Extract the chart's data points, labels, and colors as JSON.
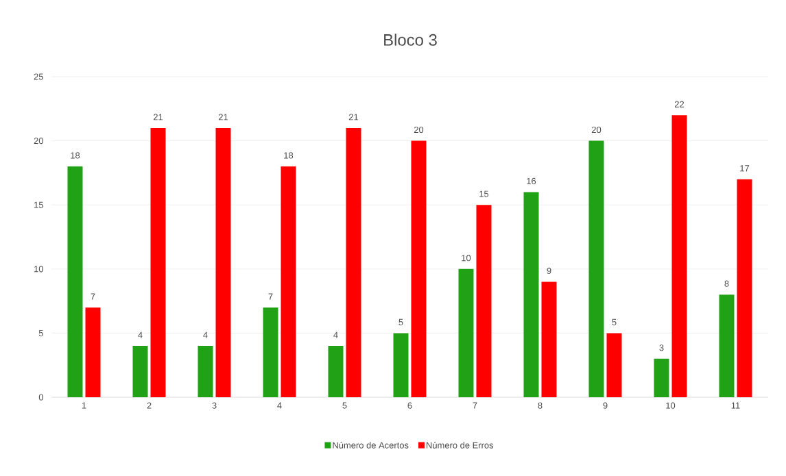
{
  "chart_data": {
    "type": "bar",
    "title": "Bloco 3",
    "categories": [
      "1",
      "2",
      "3",
      "4",
      "5",
      "6",
      "7",
      "8",
      "9",
      "10",
      "11"
    ],
    "series": [
      {
        "name": "Número de Acertos",
        "color": "#21a116",
        "values": [
          18,
          4,
          4,
          7,
          4,
          5,
          10,
          16,
          20,
          3,
          8
        ]
      },
      {
        "name": "Número de Erros",
        "color": "#ff0000",
        "values": [
          7,
          21,
          21,
          18,
          21,
          20,
          15,
          9,
          5,
          22,
          17
        ]
      }
    ],
    "ylim": [
      0,
      25
    ],
    "yticks": [
      0,
      5,
      10,
      15,
      20,
      25
    ],
    "grid": "y",
    "legend": "bottom",
    "data_labels": true
  }
}
